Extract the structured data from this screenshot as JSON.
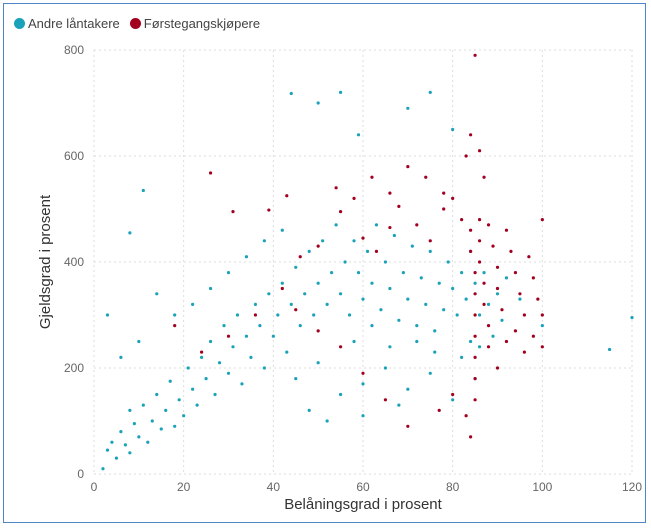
{
  "legend": {
    "items": [
      {
        "label": "Andre låntakere",
        "color": "#1aa3b8"
      },
      {
        "label": "Førstegangskjøpere",
        "color": "#a3001f"
      }
    ]
  },
  "chart_data": {
    "type": "scatter",
    "xlabel": "Belåningsgrad i prosent",
    "ylabel": "Gjeldsgrad i prosent",
    "xlim": [
      0,
      120
    ],
    "ylim": [
      0,
      800
    ],
    "x_ticks": [
      "0",
      "20",
      "40",
      "60",
      "80",
      "100",
      "120"
    ],
    "y_ticks": [
      "0",
      "200",
      "400",
      "600",
      "800"
    ],
    "grid": true,
    "legend_position": "top-left",
    "series": [
      {
        "name": "Andre låntakere",
        "color": "#1aa3b8",
        "points": [
          [
            2,
            10
          ],
          [
            3,
            45
          ],
          [
            4,
            60
          ],
          [
            5,
            30
          ],
          [
            6,
            80
          ],
          [
            7,
            55
          ],
          [
            8,
            40
          ],
          [
            8,
            120
          ],
          [
            9,
            95
          ],
          [
            10,
            70
          ],
          [
            11,
            130
          ],
          [
            12,
            60
          ],
          [
            13,
            100
          ],
          [
            14,
            150
          ],
          [
            15,
            85
          ],
          [
            16,
            120
          ],
          [
            17,
            175
          ],
          [
            18,
            90
          ],
          [
            19,
            140
          ],
          [
            20,
            110
          ],
          [
            21,
            200
          ],
          [
            22,
            160
          ],
          [
            23,
            130
          ],
          [
            24,
            220
          ],
          [
            25,
            180
          ],
          [
            26,
            250
          ],
          [
            27,
            150
          ],
          [
            28,
            210
          ],
          [
            29,
            280
          ],
          [
            30,
            190
          ],
          [
            31,
            240
          ],
          [
            32,
            300
          ],
          [
            33,
            170
          ],
          [
            34,
            260
          ],
          [
            35,
            220
          ],
          [
            36,
            320
          ],
          [
            37,
            280
          ],
          [
            38,
            200
          ],
          [
            39,
            340
          ],
          [
            40,
            260
          ],
          [
            41,
            300
          ],
          [
            42,
            360
          ],
          [
            43,
            230
          ],
          [
            44,
            320
          ],
          [
            45,
            390
          ],
          [
            46,
            280
          ],
          [
            47,
            340
          ],
          [
            48,
            420
          ],
          [
            49,
            300
          ],
          [
            50,
            360
          ],
          [
            51,
            440
          ],
          [
            52,
            320
          ],
          [
            53,
            380
          ],
          [
            54,
            470
          ],
          [
            55,
            340
          ],
          [
            56,
            400
          ],
          [
            57,
            300
          ],
          [
            58,
            440
          ],
          [
            59,
            380
          ],
          [
            60,
            330
          ],
          [
            61,
            420
          ],
          [
            62,
            360
          ],
          [
            63,
            470
          ],
          [
            64,
            310
          ],
          [
            65,
            400
          ],
          [
            66,
            350
          ],
          [
            67,
            450
          ],
          [
            68,
            290
          ],
          [
            69,
            380
          ],
          [
            70,
            330
          ],
          [
            71,
            430
          ],
          [
            72,
            280
          ],
          [
            73,
            370
          ],
          [
            74,
            320
          ],
          [
            75,
            420
          ],
          [
            76,
            270
          ],
          [
            77,
            360
          ],
          [
            78,
            310
          ],
          [
            79,
            400
          ],
          [
            80,
            350
          ],
          [
            81,
            300
          ],
          [
            82,
            380
          ],
          [
            83,
            330
          ],
          [
            84,
            250
          ],
          [
            84,
            420
          ],
          [
            85,
            360
          ],
          [
            86,
            300
          ],
          [
            87,
            380
          ],
          [
            88,
            320
          ],
          [
            89,
            260
          ],
          [
            90,
            340
          ],
          [
            91,
            290
          ],
          [
            92,
            370
          ],
          [
            95,
            330
          ],
          [
            100,
            280
          ],
          [
            115,
            235
          ],
          [
            120,
            295
          ],
          [
            8,
            455
          ],
          [
            11,
            535
          ],
          [
            3,
            300
          ],
          [
            6,
            220
          ],
          [
            10,
            250
          ],
          [
            14,
            340
          ],
          [
            18,
            300
          ],
          [
            22,
            320
          ],
          [
            26,
            350
          ],
          [
            30,
            380
          ],
          [
            34,
            410
          ],
          [
            38,
            440
          ],
          [
            42,
            460
          ],
          [
            44,
            718
          ],
          [
            50,
            700
          ],
          [
            55,
            720
          ],
          [
            59,
            640
          ],
          [
            70,
            690
          ],
          [
            75,
            720
          ],
          [
            80,
            650
          ],
          [
            45,
            180
          ],
          [
            50,
            210
          ],
          [
            55,
            150
          ],
          [
            60,
            170
          ],
          [
            65,
            200
          ],
          [
            70,
            160
          ],
          [
            75,
            190
          ],
          [
            80,
            140
          ],
          [
            85,
            180
          ],
          [
            58,
            250
          ],
          [
            62,
            280
          ],
          [
            66,
            240
          ],
          [
            72,
            250
          ],
          [
            76,
            230
          ],
          [
            82,
            220
          ],
          [
            86,
            240
          ],
          [
            48,
            120
          ],
          [
            52,
            100
          ],
          [
            60,
            110
          ],
          [
            68,
            130
          ]
        ]
      },
      {
        "name": "Førstegangskjøpere",
        "color": "#a3001f",
        "points": [
          [
            26,
            568
          ],
          [
            31,
            495
          ],
          [
            39,
            498
          ],
          [
            43,
            525
          ],
          [
            55,
            495
          ],
          [
            60,
            445
          ],
          [
            63,
            420
          ],
          [
            66,
            465
          ],
          [
            68,
            505
          ],
          [
            72,
            470
          ],
          [
            75,
            440
          ],
          [
            78,
            500
          ],
          [
            80,
            520
          ],
          [
            82,
            480
          ],
          [
            84,
            460
          ],
          [
            84,
            420
          ],
          [
            85,
            380
          ],
          [
            85,
            340
          ],
          [
            85,
            300
          ],
          [
            85,
            260
          ],
          [
            86,
            480
          ],
          [
            86,
            440
          ],
          [
            86,
            400
          ],
          [
            87,
            360
          ],
          [
            87,
            320
          ],
          [
            88,
            470
          ],
          [
            88,
            280
          ],
          [
            89,
            430
          ],
          [
            90,
            390
          ],
          [
            90,
            350
          ],
          [
            91,
            310
          ],
          [
            92,
            460
          ],
          [
            93,
            420
          ],
          [
            94,
            380
          ],
          [
            95,
            340
          ],
          [
            96,
            300
          ],
          [
            97,
            410
          ],
          [
            98,
            370
          ],
          [
            99,
            330
          ],
          [
            100,
            480
          ],
          [
            100,
            300
          ],
          [
            85,
            790
          ],
          [
            84,
            640
          ],
          [
            87,
            560
          ],
          [
            83,
            600
          ],
          [
            86,
            610
          ],
          [
            78,
            530
          ],
          [
            74,
            560
          ],
          [
            70,
            580
          ],
          [
            66,
            530
          ],
          [
            62,
            560
          ],
          [
            58,
            520
          ],
          [
            54,
            540
          ],
          [
            50,
            430
          ],
          [
            46,
            410
          ],
          [
            42,
            350
          ],
          [
            36,
            300
          ],
          [
            30,
            260
          ],
          [
            24,
            230
          ],
          [
            18,
            280
          ],
          [
            84,
            70
          ],
          [
            83,
            110
          ],
          [
            80,
            150
          ],
          [
            77,
            120
          ],
          [
            70,
            90
          ],
          [
            65,
            140
          ],
          [
            60,
            190
          ],
          [
            55,
            240
          ],
          [
            50,
            270
          ],
          [
            45,
            310
          ],
          [
            85,
            220
          ],
          [
            85,
            180
          ],
          [
            85,
            140
          ],
          [
            88,
            240
          ],
          [
            90,
            200
          ],
          [
            92,
            250
          ],
          [
            94,
            270
          ],
          [
            96,
            230
          ],
          [
            98,
            260
          ],
          [
            100,
            240
          ]
        ]
      }
    ]
  }
}
